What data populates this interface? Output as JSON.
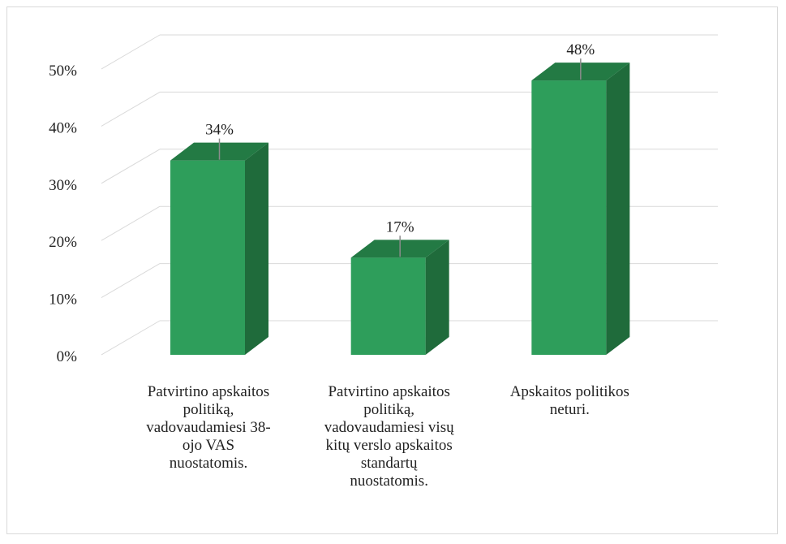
{
  "chart_data": {
    "type": "bar",
    "style": "3d-column",
    "categories": [
      "Patvirtino apskaitos\npolitiką,\nvadovaudamiesi 38-\nojo VAS\nnuostatomis.",
      "Patvirtino apskaitos\npolitiką,\nvadovaudamiesi visų\nkitų verslo apskaitos\nstandartų\nnuostatomis.",
      "Apskaitos politikos\nneturi."
    ],
    "values": [
      34,
      17,
      48
    ],
    "data_labels": [
      "34%",
      "17%",
      "48%"
    ],
    "yticks": [
      "0%",
      "10%",
      "20%",
      "30%",
      "40%",
      "50%"
    ],
    "ylim": [
      0,
      50
    ],
    "grid": true,
    "legend": "none",
    "colors": {
      "front": "#2e9e5b",
      "side": "#1f6b3b",
      "top": "#237a44",
      "grid": "#d9d9d9",
      "leader": "#8c8c8c"
    }
  }
}
